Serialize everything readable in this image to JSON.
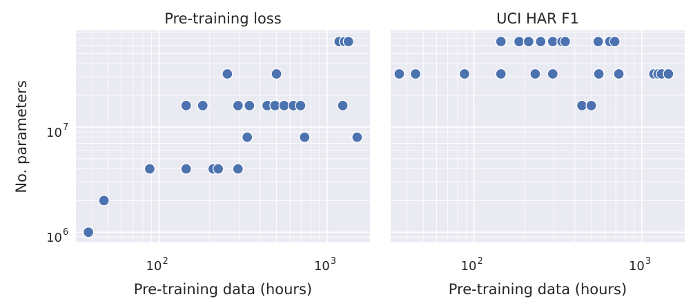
{
  "chart_data": [
    {
      "type": "scatter",
      "title": "Pre-training loss",
      "xlabel": "Pre-training data (hours)",
      "ylabel": "No. parameters",
      "xscale": "log",
      "yscale": "log",
      "xlim": [
        32,
        1800
      ],
      "ylim": [
        800000,
        83000000
      ],
      "grid": true,
      "xticks": [
        {
          "base": "10",
          "exp": "2",
          "value": 100
        },
        {
          "base": "10",
          "exp": "3",
          "value": 1000
        }
      ],
      "yticks": [
        {
          "base": "10",
          "exp": "6",
          "value": 1000000
        },
        {
          "base": "10",
          "exp": "7",
          "value": 10000000
        }
      ],
      "marker_color": "#4c72b0",
      "points": [
        {
          "x": 38,
          "y": 1000000
        },
        {
          "x": 47,
          "y": 2000000
        },
        {
          "x": 88,
          "y": 4000000
        },
        {
          "x": 145,
          "y": 4000000
        },
        {
          "x": 210,
          "y": 4000000
        },
        {
          "x": 225,
          "y": 4000000
        },
        {
          "x": 295,
          "y": 4000000
        },
        {
          "x": 145,
          "y": 16000000
        },
        {
          "x": 182,
          "y": 16000000
        },
        {
          "x": 295,
          "y": 16000000
        },
        {
          "x": 345,
          "y": 16000000
        },
        {
          "x": 440,
          "y": 16000000
        },
        {
          "x": 490,
          "y": 16000000
        },
        {
          "x": 555,
          "y": 16000000
        },
        {
          "x": 630,
          "y": 16000000
        },
        {
          "x": 695,
          "y": 16000000
        },
        {
          "x": 1240,
          "y": 16000000
        },
        {
          "x": 255,
          "y": 32000000
        },
        {
          "x": 500,
          "y": 32000000
        },
        {
          "x": 335,
          "y": 8000000
        },
        {
          "x": 735,
          "y": 8000000
        },
        {
          "x": 1510,
          "y": 8000000
        },
        {
          "x": 1180,
          "y": 65000000
        },
        {
          "x": 1270,
          "y": 65000000
        },
        {
          "x": 1340,
          "y": 65000000
        }
      ]
    },
    {
      "type": "scatter",
      "title": "UCI HAR F1",
      "xlabel": "Pre-training data (hours)",
      "ylabel": "",
      "xscale": "log",
      "yscale": "log",
      "xlim": [
        32,
        1800
      ],
      "ylim": [
        800000,
        83000000
      ],
      "grid": true,
      "xticks": [
        {
          "base": "10",
          "exp": "2",
          "value": 100
        },
        {
          "base": "10",
          "exp": "3",
          "value": 1000
        }
      ],
      "marker_color": "#4c72b0",
      "points": [
        {
          "x": 36,
          "y": 32000000
        },
        {
          "x": 45,
          "y": 32000000
        },
        {
          "x": 88,
          "y": 32000000
        },
        {
          "x": 145,
          "y": 32000000
        },
        {
          "x": 232,
          "y": 32000000
        },
        {
          "x": 295,
          "y": 32000000
        },
        {
          "x": 555,
          "y": 32000000
        },
        {
          "x": 730,
          "y": 32000000
        },
        {
          "x": 1180,
          "y": 32000000
        },
        {
          "x": 1250,
          "y": 32000000
        },
        {
          "x": 1310,
          "y": 32000000
        },
        {
          "x": 1440,
          "y": 32000000
        },
        {
          "x": 145,
          "y": 65000000
        },
        {
          "x": 186,
          "y": 65000000
        },
        {
          "x": 212,
          "y": 65000000
        },
        {
          "x": 250,
          "y": 65000000
        },
        {
          "x": 295,
          "y": 65000000
        },
        {
          "x": 335,
          "y": 65000000
        },
        {
          "x": 350,
          "y": 65000000
        },
        {
          "x": 550,
          "y": 65000000
        },
        {
          "x": 645,
          "y": 65000000
        },
        {
          "x": 690,
          "y": 65000000
        },
        {
          "x": 440,
          "y": 16000000
        },
        {
          "x": 500,
          "y": 16000000
        }
      ]
    }
  ]
}
